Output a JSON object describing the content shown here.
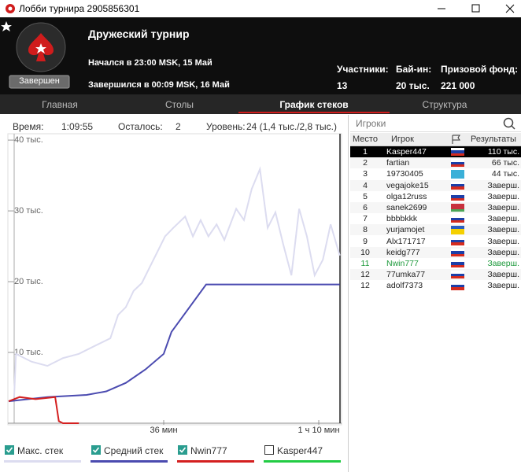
{
  "window": {
    "title": "Лобби турнира 2905856301"
  },
  "header": {
    "title": "Дружеский турнир",
    "status": "Завершен",
    "started": "Начался в 23:00 MSK, 15 Май",
    "finished": "Завершился в 00:09 MSK, 16 Май",
    "stats": [
      {
        "label": "Участники:",
        "value": "13"
      },
      {
        "label": "Бай-ин:",
        "value": "20 тыс."
      },
      {
        "label": "Призовой фонд:",
        "value": "221 000"
      }
    ]
  },
  "tabs": {
    "items": [
      "Главная",
      "Столы",
      "График стеков",
      "Структура"
    ],
    "active": 2
  },
  "info": [
    {
      "label": "Время:",
      "value": "1:09:55"
    },
    {
      "label": "Осталось:",
      "value": "2"
    },
    {
      "label": "Уровень:",
      "value": "24 (1,4 тыс./2,8 тыс.)"
    }
  ],
  "chart_data": {
    "type": "line",
    "xlim": [
      2,
      75
    ],
    "xticks": [
      {
        "value": 36,
        "label": "36 мин"
      },
      {
        "value": 70,
        "label": "1 ч 10 мин"
      }
    ],
    "ylim": [
      0,
      40.9
    ],
    "yticks": [
      {
        "value": 10,
        "label": "10 тыс."
      },
      {
        "value": 20,
        "label": "20 тыс."
      },
      {
        "value": 30,
        "label": "30 тыс."
      },
      {
        "value": 40,
        "label": "40 тыс."
      }
    ],
    "series": [
      {
        "name": "Макс. стек",
        "color": "#dcdcf0",
        "checked": true,
        "x": [
          3.2,
          3.6,
          7.0,
          10.5,
          13.9,
          17.4,
          20.8,
          24.3,
          26.0,
          27.7,
          29.4,
          31.2,
          32.9,
          34.6,
          36.3,
          38.1,
          40.7,
          42.4,
          44.1,
          45.8,
          47.6,
          49.3,
          51.9,
          53.6,
          55.3,
          57.1,
          58.8,
          60.5,
          62.2,
          64.0,
          65.7,
          67.4,
          69.1,
          70.9,
          72.6,
          74.6
        ],
        "values": [
          3.7,
          9.8,
          8.7,
          8.1,
          9.2,
          9.8,
          10.9,
          12,
          15.3,
          16.4,
          18.7,
          19.8,
          22,
          24.2,
          26.4,
          27.6,
          29.2,
          26.4,
          28.7,
          26.4,
          28.1,
          25.9,
          30.3,
          28.7,
          33.1,
          35.9,
          27.6,
          29.8,
          25.3,
          20.9,
          30.3,
          26.4,
          20.9,
          23.1,
          28.1,
          23.7
        ]
      },
      {
        "name": "Средний стек",
        "color": "#4b4bb0",
        "checked": true,
        "x": [
          2,
          10.5,
          19.1,
          23.4,
          27.7,
          32,
          36,
          37.7,
          45.3,
          74.6
        ],
        "values": [
          3.1,
          3.7,
          4,
          4.5,
          5.7,
          7.6,
          9.8,
          12.9,
          19.6,
          19.6
        ]
      },
      {
        "name": "Nwin777",
        "color": "#d42020",
        "checked": true,
        "x": [
          2,
          4.4,
          7.9,
          12.2,
          13.0,
          13.9,
          17.4
        ],
        "values": [
          3.1,
          3.7,
          3.4,
          3.7,
          0.3,
          0,
          0
        ]
      },
      {
        "name": "Kasper447",
        "color": "#22cc44",
        "checked": false
      }
    ]
  },
  "players": {
    "search": "Игроки",
    "columns": [
      "Место",
      "Игрок",
      "Результаты"
    ],
    "selected_row": 0,
    "highlight_row": 10,
    "rows": [
      [
        "1",
        "Kasper447",
        "110 тыс."
      ],
      [
        "2",
        "fartian",
        "66 тыс."
      ],
      [
        "3",
        "19730405",
        "44 тыс."
      ],
      [
        "4",
        "vegajoke15",
        "Заверш."
      ],
      [
        "5",
        "olga12russ",
        "Заверш."
      ],
      [
        "6",
        "sanek2699",
        "Заверш."
      ],
      [
        "7",
        "bbbbkkk",
        "Заверш."
      ],
      [
        "8",
        "yurjamojet",
        "Заверш."
      ],
      [
        "9",
        "Alx171717",
        "Заверш."
      ],
      [
        "10",
        "keidg777",
        "Заверш."
      ],
      [
        "11",
        "Nwin777",
        "Заверш."
      ],
      [
        "12",
        "77umka77",
        "Заверш."
      ],
      [
        "12",
        "adolf7373",
        "Заверш."
      ]
    ]
  }
}
